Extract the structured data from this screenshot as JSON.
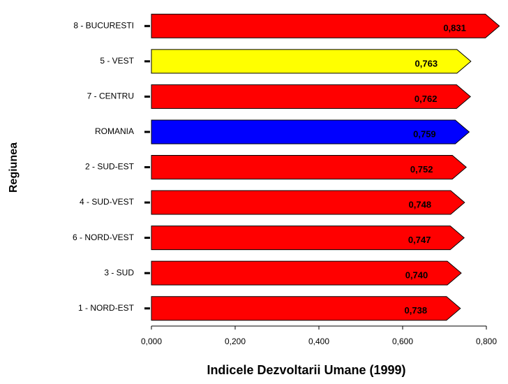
{
  "chart_data": {
    "type": "bar",
    "orientation": "horizontal",
    "x_label": "Indicele Dezvoltarii Umane (1999)",
    "y_label": "Regiunea",
    "categories": [
      "8 - BUCURESTI",
      "5 - VEST",
      "7 - CENTRU",
      "ROMANIA",
      "2 - SUD-EST",
      "4 - SUD-VEST",
      "6 - NORD-VEST",
      "3 - SUD",
      "1 - NORD-EST"
    ],
    "values": [
      0.831,
      0.763,
      0.762,
      0.759,
      0.752,
      0.748,
      0.747,
      0.74,
      0.738
    ],
    "value_labels": [
      "0,831",
      "0,763",
      "0,762",
      "0,759",
      "0,752",
      "0,748",
      "0,747",
      "0,740",
      "0,738"
    ],
    "colors": [
      "#ff0000",
      "#ffff00",
      "#ff0000",
      "#0000ff",
      "#ff0000",
      "#ff0000",
      "#ff0000",
      "#ff0000",
      "#ff0000"
    ],
    "xlim": [
      0,
      0.8
    ],
    "xticks": [
      {
        "value": 0,
        "label": "0,000"
      },
      {
        "value": 0.2,
        "label": "0,200"
      },
      {
        "value": 0.4,
        "label": "0,400"
      },
      {
        "value": 0.6,
        "label": "0,600"
      },
      {
        "value": 0.8,
        "label": "0,800"
      }
    ],
    "grid": false
  }
}
